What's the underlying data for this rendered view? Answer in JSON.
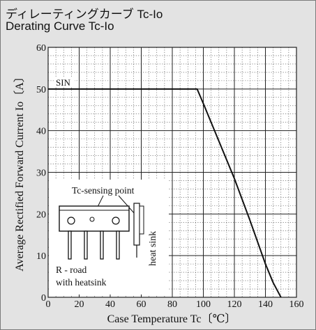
{
  "title_jp": "ディレーティングカーブ Tc-Io",
  "title_en": "Derating Curve Tc-Io",
  "chart_data": {
    "type": "line",
    "xlabel": "Case Temperature  Tc〔℃〕",
    "ylabel": "Average Rectified Forward Current  Io〔A〕",
    "xlim": [
      0,
      160
    ],
    "ylim": [
      0,
      60
    ],
    "xticks": [
      0,
      20,
      40,
      60,
      80,
      100,
      120,
      140,
      160
    ],
    "yticks": [
      0,
      10,
      20,
      30,
      40,
      50,
      60
    ],
    "grid": true,
    "series": [
      {
        "name": "SIN",
        "x": [
          0,
          96,
          100,
          110,
          120,
          130,
          140,
          145,
          150
        ],
        "y": [
          50,
          50,
          46.5,
          37.5,
          28.5,
          18.5,
          8,
          3.5,
          0
        ]
      }
    ],
    "inset": {
      "sensing_label": "Tc-sensing point",
      "heatsink_label": "heat sink",
      "road_label_1": "R - road",
      "road_label_2": "with heatsink"
    }
  }
}
